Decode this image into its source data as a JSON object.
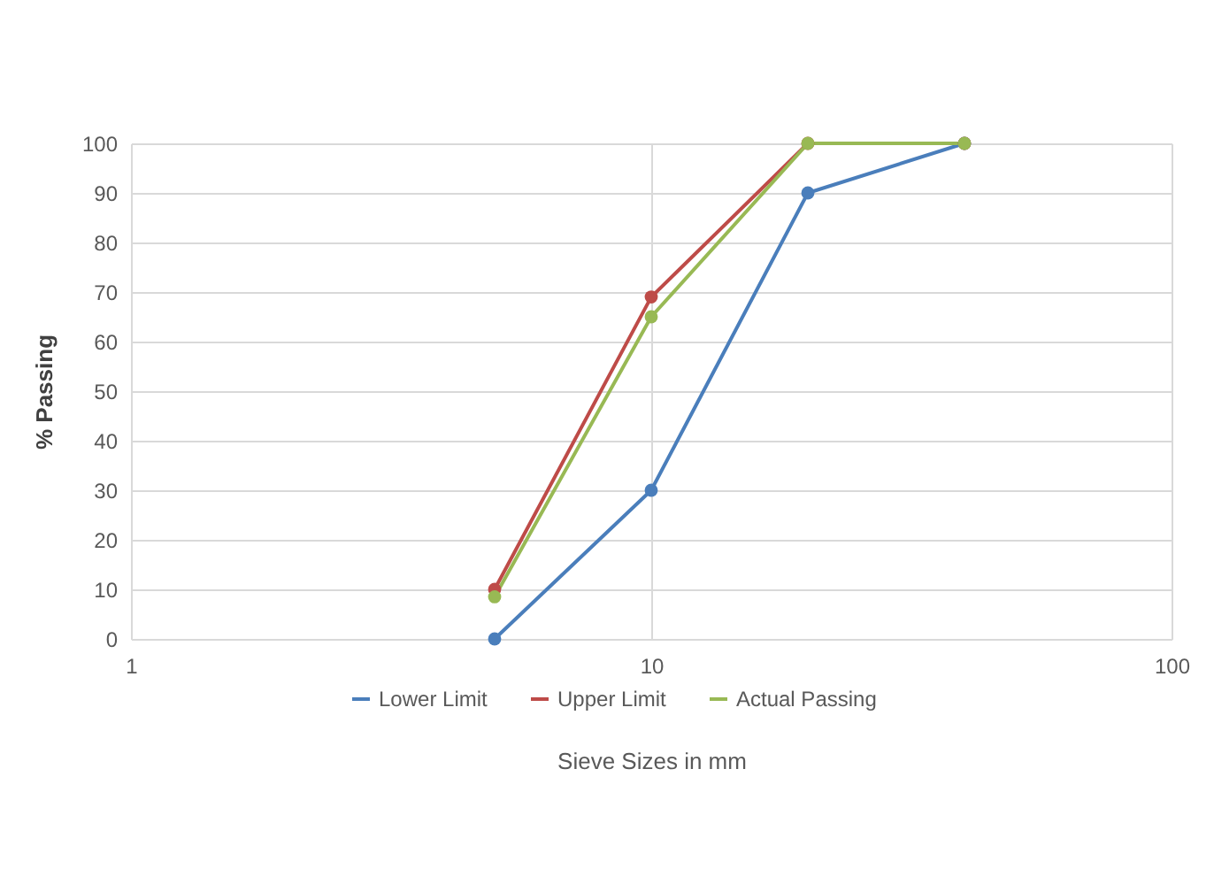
{
  "chart_data": {
    "type": "line",
    "xlabel": "Sieve Sizes in mm",
    "ylabel": "% Passing",
    "x": [
      5,
      10,
      20,
      40
    ],
    "log": "x",
    "series": [
      {
        "name": "Lower Limit",
        "color": "#4a7ebb",
        "values": [
          0,
          30,
          90,
          100
        ]
      },
      {
        "name": "Upper Limit",
        "color": "#be4b48",
        "values": [
          10,
          69,
          100,
          100
        ]
      },
      {
        "name": "Actual Passing",
        "color": "#98b954",
        "values": [
          8.5,
          65,
          100,
          100
        ]
      }
    ],
    "xlim": [
      1,
      100
    ],
    "xticks": [
      1,
      10,
      100
    ],
    "ylim": [
      0,
      100
    ],
    "yticks": [
      0,
      10,
      20,
      30,
      40,
      50,
      60,
      70,
      80,
      90,
      100
    ],
    "grid": true,
    "legend": "bottom",
    "marker": "circle",
    "line_style": "solid"
  }
}
